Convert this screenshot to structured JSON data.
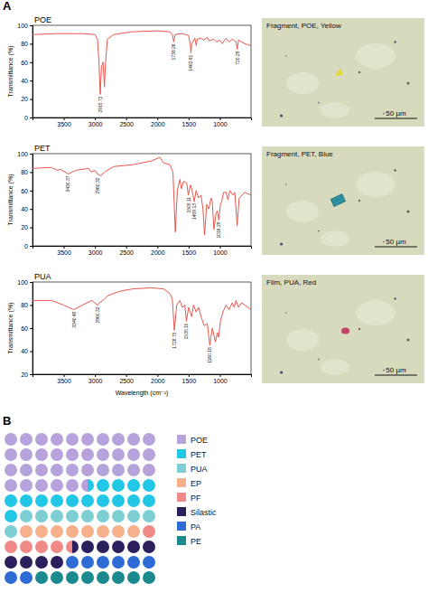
{
  "chart_data": [
    {
      "type": "line",
      "title": "POE",
      "y_label": "Transmittance (%)",
      "color": "#e8574f",
      "grid": false,
      "xlim": [
        4000,
        500
      ],
      "xticks": [
        3500,
        3000,
        2500,
        2000,
        1500,
        1000
      ],
      "ylim": [
        0,
        100
      ],
      "yticks": [
        0,
        20,
        40,
        60,
        80,
        100
      ],
      "x": [
        4000,
        3600,
        3200,
        3000,
        2960,
        2935,
        2915,
        2895,
        2870,
        2848,
        2830,
        2800,
        2700,
        2400,
        2000,
        1800,
        1760,
        1738,
        1715,
        1600,
        1500,
        1470,
        1463,
        1450,
        1400,
        1377,
        1360,
        1300,
        1260,
        1200,
        1170,
        1100,
        1050,
        1000,
        960,
        900,
        850,
        800,
        740,
        720,
        700,
        600,
        500
      ],
      "values": [
        90,
        91,
        91,
        90,
        85,
        60,
        25,
        55,
        60,
        33,
        60,
        85,
        90,
        93,
        94,
        93,
        90,
        82,
        90,
        91,
        89,
        78,
        70,
        80,
        86,
        78,
        85,
        86,
        84,
        87,
        83,
        85,
        82,
        84,
        80,
        86,
        82,
        85,
        82,
        74,
        84,
        80,
        78
      ],
      "annotations": [
        {
          "x": 2915.72,
          "label": "2915.72"
        },
        {
          "x": 1738.26,
          "label": "1738.26"
        },
        {
          "x": 1463.91,
          "label": "1463.91"
        },
        {
          "x": 720.29,
          "label": "720.29"
        }
      ]
    },
    {
      "type": "line",
      "title": "PET",
      "y_label": "Transmittance (%)",
      "color": "#e8574f",
      "grid": false,
      "xlim": [
        4000,
        500
      ],
      "xticks": [
        3500,
        3000,
        2500,
        2000,
        1500,
        1000
      ],
      "ylim": [
        0,
        100
      ],
      "yticks": [
        0,
        20,
        40,
        60,
        80,
        100
      ],
      "x": [
        4000,
        3700,
        3600,
        3550,
        3430,
        3300,
        3100,
        3060,
        3000,
        2960,
        2905,
        2850,
        2700,
        2400,
        2100,
        1960,
        1900,
        1800,
        1750,
        1713,
        1680,
        1640,
        1615,
        1580,
        1530,
        1505,
        1470,
        1450,
        1409,
        1380,
        1340,
        1300,
        1270,
        1244,
        1210,
        1176,
        1140,
        1120,
        1095,
        1060,
        1040,
        1016,
        990,
        970,
        940,
        900,
        870,
        840,
        790,
        760,
        722,
        690,
        600,
        500
      ],
      "values": [
        84,
        85,
        82,
        83,
        78,
        82,
        84,
        80,
        82,
        78,
        76,
        80,
        86,
        88,
        92,
        96,
        90,
        88,
        80,
        15,
        60,
        72,
        62,
        70,
        68,
        55,
        66,
        62,
        48,
        60,
        52,
        55,
        40,
        12,
        45,
        40,
        52,
        48,
        18,
        35,
        38,
        28,
        45,
        48,
        58,
        58,
        50,
        60,
        55,
        58,
        22,
        52,
        58,
        55
      ],
      "annotations": [
        {
          "x": 3430.37,
          "label": "3430.37"
        },
        {
          "x": 2960.32,
          "label": "2960.32"
        },
        {
          "x": 1505.11,
          "label": "1505.11"
        },
        {
          "x": 1409.13,
          "label": "1409.13"
        },
        {
          "x": 1016.29,
          "label": "1016.29"
        }
      ]
    },
    {
      "type": "line",
      "title": "PUA",
      "y_label": "Transmittance (%)",
      "x_label": "Wavelength (cm⁻¹)",
      "color": "#e8574f",
      "grid": false,
      "xlim": [
        4000,
        500
      ],
      "xticks": [
        3500,
        3000,
        2500,
        2000,
        1500,
        1000
      ],
      "ylim": [
        20,
        100
      ],
      "yticks": [
        20,
        40,
        60,
        80,
        100
      ],
      "x": [
        4000,
        3700,
        3500,
        3340,
        3200,
        3050,
        2960,
        2930,
        2870,
        2800,
        2600,
        2400,
        2100,
        1900,
        1800,
        1760,
        1728,
        1690,
        1640,
        1600,
        1560,
        1535,
        1500,
        1450,
        1420,
        1380,
        1340,
        1300,
        1250,
        1200,
        1160,
        1120,
        1070,
        1040,
        1020,
        990,
        950,
        900,
        850,
        800,
        770,
        740,
        700,
        650,
        600,
        500
      ],
      "values": [
        84,
        84,
        80,
        76,
        80,
        84,
        80,
        82,
        84,
        88,
        92,
        94,
        95,
        94,
        90,
        85,
        58,
        80,
        84,
        78,
        80,
        66,
        78,
        70,
        80,
        74,
        78,
        70,
        62,
        64,
        45,
        60,
        48,
        56,
        52,
        66,
        74,
        80,
        76,
        82,
        78,
        84,
        78,
        82,
        80,
        76
      ],
      "annotations": [
        {
          "x": 3340.48,
          "label": "3340.48"
        },
        {
          "x": 2960.32,
          "label": "2960.32"
        },
        {
          "x": 1728.75,
          "label": "1728.75"
        },
        {
          "x": 1535.1,
          "label": "1535.10"
        },
        {
          "x": 1160.18,
          "label": "1160.18"
        }
      ]
    },
    {
      "type": "waffle",
      "legend": "right",
      "categories": [
        "POE",
        "PET",
        "PUA",
        "EP",
        "PF",
        "Silastic",
        "PA",
        "PE"
      ],
      "values": [
        35.5,
        15.5,
        10,
        8,
        5.5,
        9.5,
        8,
        8
      ],
      "colors": [
        "#b7a3dc",
        "#22c7e6",
        "#7dcfd3",
        "#f6b18c",
        "#ef8a86",
        "#2c1f5c",
        "#2f6bd4",
        "#1a8a8e"
      ]
    }
  ],
  "panel_labels": [
    "A",
    "B"
  ],
  "images": [
    {
      "caption": "Fragment, POE, Yellow",
      "scale_bar": "50 µm"
    },
    {
      "caption": "Fragment, PET, Blue",
      "scale_bar": "50 µm"
    },
    {
      "caption": "Film, PUA, Red",
      "scale_bar": "50 µm"
    }
  ]
}
